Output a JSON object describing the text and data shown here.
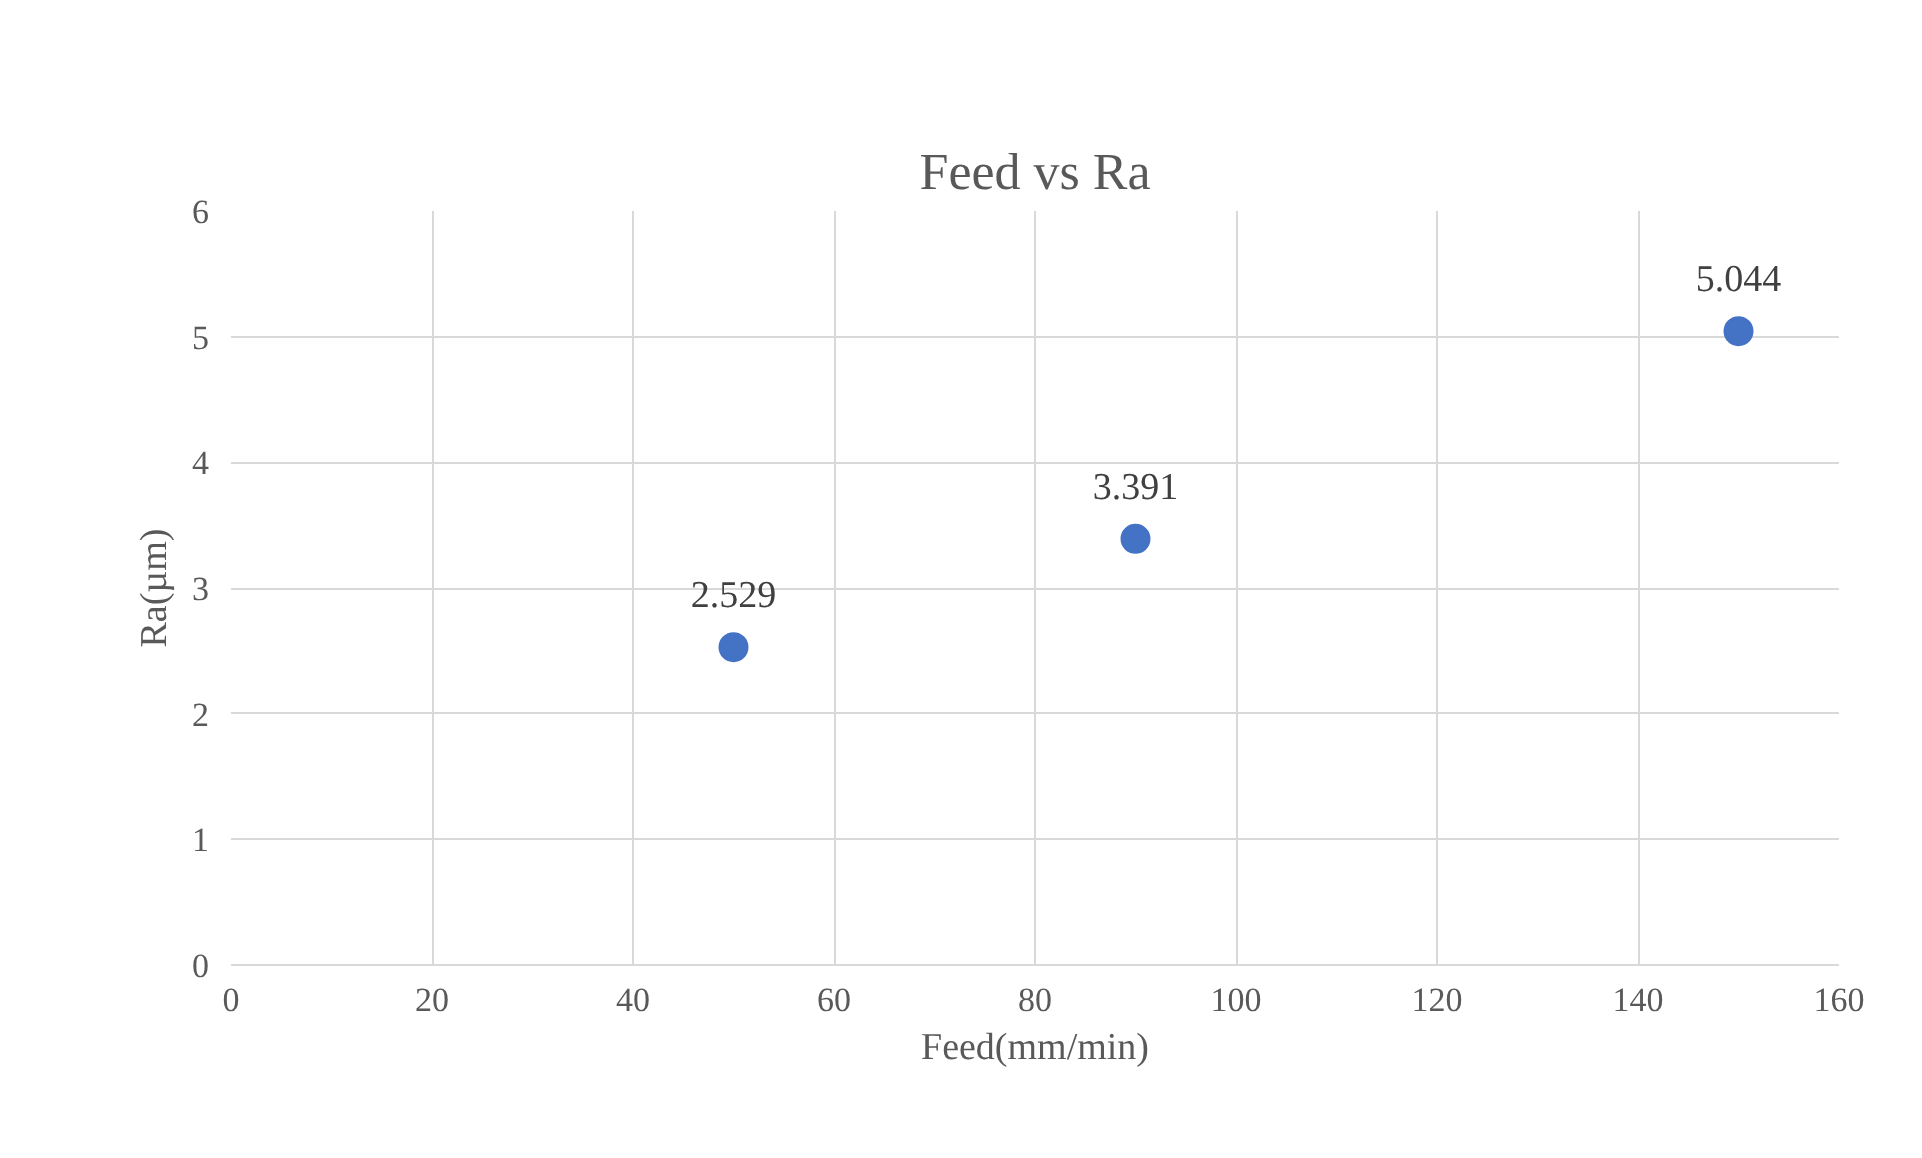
{
  "chart_data": {
    "type": "scatter",
    "title": "Feed vs Ra",
    "xlabel": "Feed(mm/min)",
    "ylabel": "Ra(µm)",
    "x": [
      50,
      90,
      150
    ],
    "values": [
      2.529,
      3.391,
      5.044
    ],
    "color": "#4472c4",
    "xlim": [
      0,
      160
    ],
    "xticks": [
      0,
      20,
      40,
      60,
      80,
      100,
      120,
      140,
      160
    ],
    "ylim": [
      0,
      6
    ],
    "yticks": [
      0,
      1,
      2,
      3,
      4,
      5,
      6
    ],
    "grid": true,
    "marker": "circle",
    "data_labels": true
  }
}
